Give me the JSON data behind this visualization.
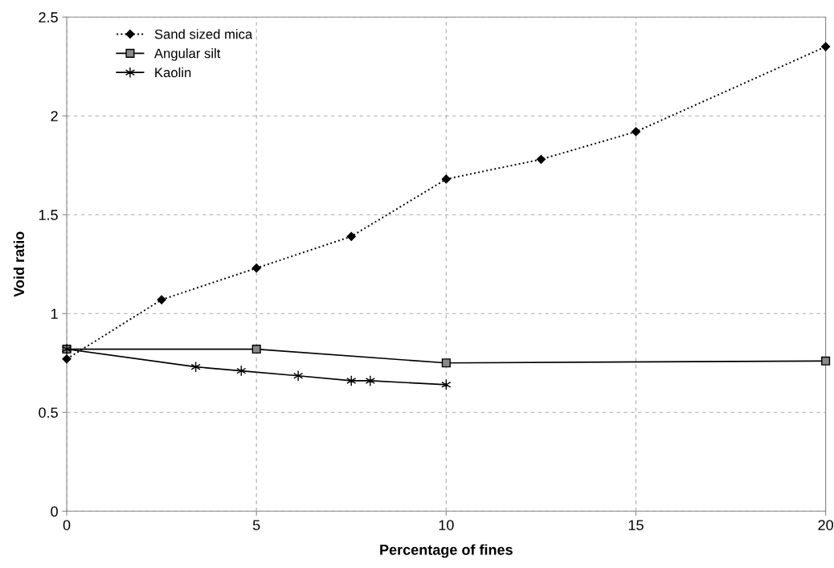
{
  "chart_data": {
    "type": "line",
    "xlabel": "Percentage of fines",
    "ylabel": "Void ratio",
    "xlim": [
      0,
      20
    ],
    "ylim": [
      0,
      2.5
    ],
    "xticks": [
      0,
      5,
      10,
      15,
      20
    ],
    "yticks": [
      0,
      0.5,
      1,
      1.5,
      2,
      2.5
    ],
    "grid": true,
    "legend": "top left",
    "series": [
      {
        "name": "Sand sized mica",
        "color": "#000000",
        "marker": "diamond",
        "line_style": "dotted",
        "x": [
          0,
          2.5,
          5,
          7.5,
          10,
          12.5,
          15,
          20
        ],
        "values": [
          0.77,
          1.07,
          1.23,
          1.39,
          1.68,
          1.78,
          1.92,
          2.35
        ]
      },
      {
        "name": "Angular silt",
        "color": "#000000",
        "marker": "square",
        "line_style": "solid",
        "x": [
          0,
          5,
          10,
          20
        ],
        "values": [
          0.82,
          0.82,
          0.75,
          0.76
        ]
      },
      {
        "name": "Kaolin",
        "color": "#000000",
        "marker": "cross",
        "line_style": "solid",
        "x": [
          0,
          3.4,
          4.6,
          6.1,
          7.5,
          8,
          10
        ],
        "values": [
          0.82,
          0.73,
          0.71,
          0.685,
          0.66,
          0.66,
          0.64
        ]
      }
    ]
  }
}
